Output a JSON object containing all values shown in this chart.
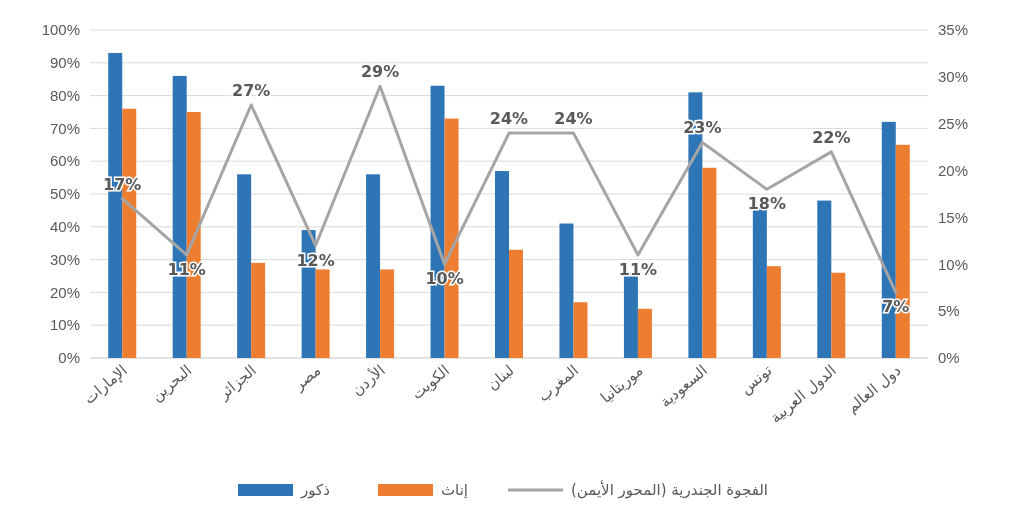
{
  "chart_data": {
    "type": "bar",
    "categories": [
      "الإمارات",
      "البحرين",
      "الجزائر",
      "مصر",
      "الأردن",
      "الكويت",
      "لبنان",
      "المغرب",
      "موريتانيا",
      "السعودية",
      "تونس",
      "الدول العربية",
      "دول العالم"
    ],
    "series": [
      {
        "name": "ذكور",
        "color": "#2e75b6",
        "values": [
          93,
          86,
          56,
          39,
          56,
          83,
          57,
          41,
          26,
          81,
          46,
          48,
          72
        ]
      },
      {
        "name": "إناث",
        "color": "#ed7d31",
        "values": [
          76,
          75,
          29,
          27,
          27,
          73,
          33,
          17,
          15,
          58,
          28,
          26,
          65
        ]
      },
      {
        "name": "الفجوة الجندرية (المحور الأيمن)",
        "type": "line",
        "axis": "y2",
        "color": "#a5a5a5",
        "values": [
          17,
          11,
          27,
          12,
          29,
          10,
          24,
          24,
          11,
          23,
          18,
          22,
          7
        ],
        "value_labels": [
          "17%",
          "11%",
          "27%",
          "12%",
          "29%",
          "10%",
          "24%",
          "24%",
          "11%",
          "23%",
          "18%",
          "22%",
          "7%"
        ]
      }
    ],
    "ylim": [
      0,
      100
    ],
    "yticks": [
      {
        "value": 0,
        "label": "0%"
      },
      {
        "value": 10,
        "label": "10%"
      },
      {
        "value": 20,
        "label": "20%"
      },
      {
        "value": 30,
        "label": "30%"
      },
      {
        "value": 40,
        "label": "40%"
      },
      {
        "value": 50,
        "label": "50%"
      },
      {
        "value": 60,
        "label": "60%"
      },
      {
        "value": 70,
        "label": "70%"
      },
      {
        "value": 80,
        "label": "80%"
      },
      {
        "value": 90,
        "label": "90%"
      },
      {
        "value": 100,
        "label": "100%"
      }
    ],
    "y2lim": [
      0,
      35
    ],
    "y2ticks": [
      {
        "value": 0,
        "label": "0%"
      },
      {
        "value": 5,
        "label": "5%"
      },
      {
        "value": 10,
        "label": "10%"
      },
      {
        "value": 15,
        "label": "15%"
      },
      {
        "value": 20,
        "label": "20%"
      },
      {
        "value": 25,
        "label": "25%"
      },
      {
        "value": 30,
        "label": "30%"
      },
      {
        "value": 35,
        "label": "35%"
      }
    ],
    "grid": "y",
    "legend": "bottom",
    "marker": "none",
    "line_style": "solid"
  }
}
